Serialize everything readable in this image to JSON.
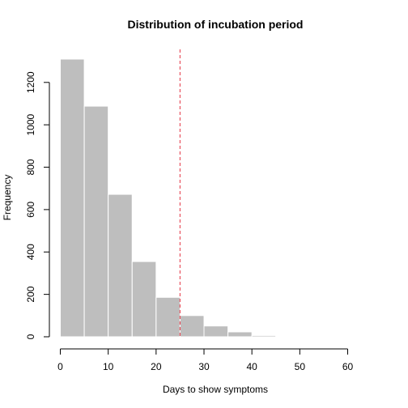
{
  "chart_data": {
    "type": "bar",
    "title": "Distribution of incubation period",
    "xlabel": "Days to show symptoms",
    "ylabel": "Frequency",
    "bin_edges": [
      0,
      5,
      10,
      15,
      20,
      25,
      30,
      35,
      40,
      45,
      50
    ],
    "values": [
      1310,
      1088,
      672,
      355,
      186,
      100,
      51,
      23,
      6,
      2
    ],
    "xlim": [
      0,
      60
    ],
    "ylim": [
      0,
      1310
    ],
    "xticks": [
      0,
      10,
      20,
      30,
      40,
      50,
      60
    ],
    "yticks": [
      0,
      200,
      400,
      600,
      800,
      1000,
      1200
    ],
    "reference_line": {
      "x": 25,
      "color": "#e8535f",
      "style": "dashed"
    },
    "bar_color": "#bebebe",
    "grid": false
  }
}
